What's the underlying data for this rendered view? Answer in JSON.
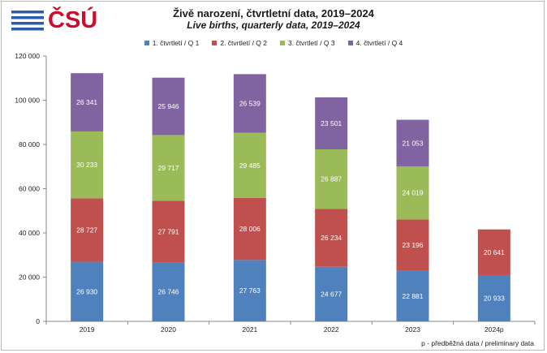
{
  "logo": {
    "text": "ČSÚ",
    "color": "#c8102e",
    "stripe_color": "#2b5ea7"
  },
  "title": "Živě narození, čtvrtletní data, 2019–2024",
  "subtitle": "Live births, quarterly data, 2019–2024",
  "note": "p - předběžná data / preliminary data",
  "chart_data": {
    "type": "bar",
    "stacked": true,
    "categories": [
      "2019",
      "2020",
      "2021",
      "2022",
      "2023",
      "2024p"
    ],
    "series": [
      {
        "name": "1. čtvrtletí / Q 1",
        "color": "#4f81bd",
        "values": [
          26930,
          26746,
          27763,
          24677,
          22881,
          20933
        ],
        "labels": [
          "26 930",
          "26 746",
          "27 763",
          "24 677",
          "22 881",
          "20 933"
        ]
      },
      {
        "name": "2. čtvrtletí / Q 2",
        "color": "#c0504d",
        "values": [
          28727,
          27791,
          28006,
          26234,
          23196,
          20641
        ],
        "labels": [
          "28 727",
          "27 791",
          "28 006",
          "26 234",
          "23 196",
          "20 641"
        ]
      },
      {
        "name": "3. čtvrtletí / Q 3",
        "color": "#9bbb59",
        "values": [
          30233,
          29717,
          29485,
          26887,
          24019,
          null
        ],
        "labels": [
          "30 233",
          "29 717",
          "29 485",
          "26 887",
          "24 019",
          null
        ]
      },
      {
        "name": "4. čtvrtletí / Q 4",
        "color": "#8064a2",
        "values": [
          26341,
          25946,
          26539,
          23501,
          21053,
          null
        ],
        "labels": [
          "26 341",
          "25 946",
          "26 539",
          "23 501",
          "21 053",
          null
        ]
      }
    ],
    "ylim": [
      0,
      120000
    ],
    "yticks": [
      0,
      20000,
      40000,
      60000,
      80000,
      100000,
      120000
    ],
    "ytick_labels": [
      "0",
      "20 000",
      "40 000",
      "60 000",
      "80 000",
      "100 000",
      "120 000"
    ],
    "legend_position": "top",
    "grid": false
  }
}
